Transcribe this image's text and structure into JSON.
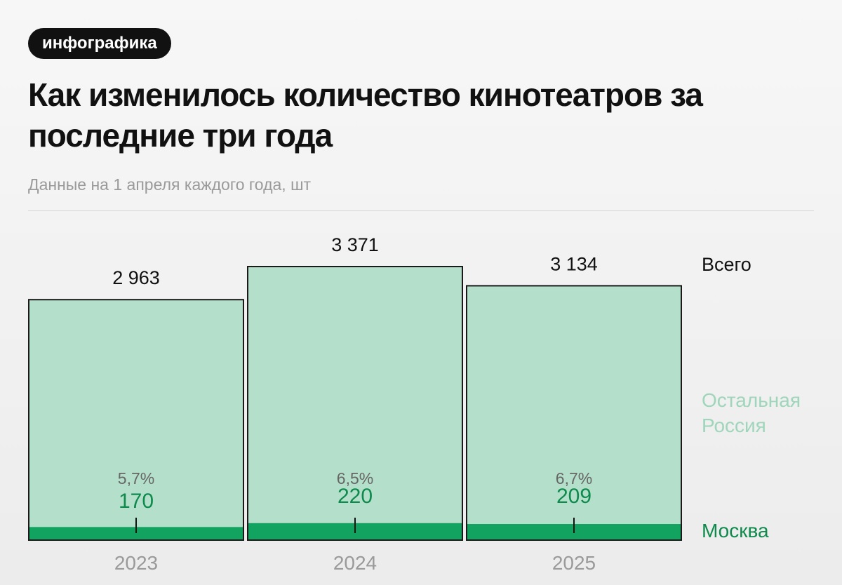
{
  "badge": "инфографика",
  "title": "Как изменилось количество кинотеатров за последние три года",
  "subtitle": "Данные на 1 апреля каждого года, шт",
  "colors": {
    "rest": "#b4dfcb",
    "moscow": "#11a35f",
    "moscow_text": "#0e8a4c",
    "rest_label": "#9fd6bb",
    "year_label": "#9a9a9a",
    "border": "#1a1a1a"
  },
  "chart_data": {
    "type": "bar",
    "stacked": true,
    "categories": [
      "2023",
      "2024",
      "2025"
    ],
    "totals": [
      2963,
      3371,
      3134
    ],
    "total_labels": [
      "2 963",
      "3 371",
      "3 134"
    ],
    "series": [
      {
        "name": "Москва",
        "values": [
          170,
          220,
          209
        ],
        "labels": [
          "170",
          "220",
          "209"
        ],
        "shares": [
          "5,7%",
          "6,5%",
          "6,7%"
        ]
      },
      {
        "name": "Остальная Россия",
        "values": [
          2793,
          3151,
          2925
        ]
      }
    ],
    "total_series_label": "Всего",
    "rest_legend_lines": [
      "Остальная",
      "Россия"
    ]
  }
}
